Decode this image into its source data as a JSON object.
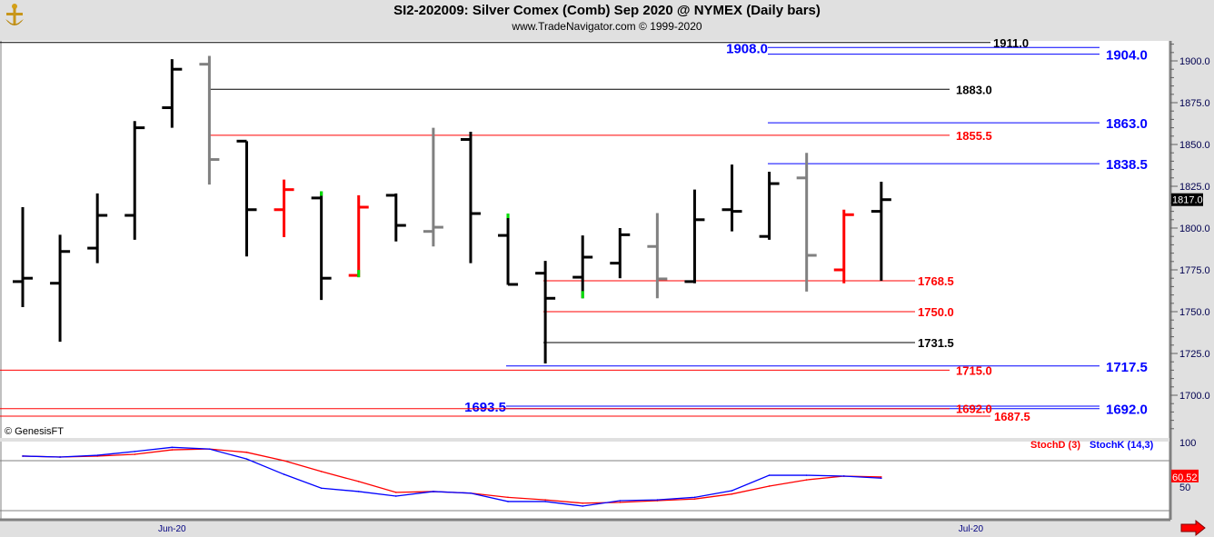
{
  "header": {
    "title": "SI2-202009:  Silver Comex (Comb) Sep 2020 @ NYMEX  (Daily bars)",
    "subtitle": "www.TradeNavigator.com © 1999-2020",
    "logo_icon": "gold-anchor-logo-icon"
  },
  "copyright": "© GenesisFT",
  "colors": {
    "up": "#000000",
    "down_red": "#ff0000",
    "gray": "#808080",
    "green": "#00e000",
    "blue": "#0000ff",
    "last_price_bg": "#000000",
    "stoch_value_bg": "#ff0000"
  },
  "chart_data": [
    {
      "type": "ohlc",
      "ylim": [
        1680,
        1915
      ],
      "y_ticks": [
        "1900.0",
        "1875.0",
        "1850.0",
        "1825.0",
        "1800.0",
        "1775.0",
        "1750.0",
        "1725.0",
        "1700.0"
      ],
      "x_tick_labels": [
        {
          "label": "Jun-20",
          "bar": 4
        },
        {
          "label": "Jul-20",
          "bar": 25.4
        }
      ],
      "last_price": "1817.0",
      "bars": [
        {
          "o": 1768,
          "h": 1812.5,
          "l": 1752.7,
          "c": 1770,
          "color": "black"
        },
        {
          "o": 1767,
          "h": 1796,
          "l": 1732,
          "c": 1786,
          "color": "black"
        },
        {
          "o": 1788,
          "h": 1820.7,
          "l": 1779,
          "c": 1807.6,
          "color": "black"
        },
        {
          "o": 1807.6,
          "h": 1864,
          "l": 1793,
          "c": 1860,
          "color": "black"
        },
        {
          "o": 1872,
          "h": 1901,
          "l": 1860,
          "c": 1895,
          "color": "black"
        },
        {
          "o": 1898,
          "h": 1903,
          "l": 1826,
          "c": 1841,
          "color": "gray"
        },
        {
          "o": 1852,
          "h": 1852,
          "l": 1783,
          "c": 1811,
          "color": "black"
        },
        {
          "o": 1811,
          "h": 1829,
          "l": 1794.6,
          "c": 1823,
          "color": "red"
        },
        {
          "o": 1818,
          "h": 1822,
          "l": 1757,
          "c": 1770,
          "color": "black",
          "mark": "high"
        },
        {
          "o": 1771.7,
          "h": 1819.6,
          "l": 1770.6,
          "c": 1812.5,
          "color": "red",
          "mark": "low"
        },
        {
          "o": 1819.6,
          "h": 1820.7,
          "l": 1792,
          "c": 1801.6,
          "color": "black"
        },
        {
          "o": 1798,
          "h": 1860,
          "l": 1789,
          "c": 1800.5,
          "color": "gray"
        },
        {
          "o": 1853,
          "h": 1857.6,
          "l": 1779,
          "c": 1808.7,
          "color": "black"
        },
        {
          "o": 1795.6,
          "h": 1808.7,
          "l": 1766,
          "c": 1766.3,
          "color": "black",
          "mark": "high"
        },
        {
          "o": 1773,
          "h": 1780.4,
          "l": 1719,
          "c": 1758,
          "color": "black"
        },
        {
          "o": 1770.6,
          "h": 1795.6,
          "l": 1758,
          "c": 1782.6,
          "color": "black",
          "mark": "low"
        },
        {
          "o": 1779,
          "h": 1800,
          "l": 1770,
          "c": 1796,
          "color": "black"
        },
        {
          "o": 1789,
          "h": 1809,
          "l": 1758,
          "c": 1769.6,
          "color": "gray"
        },
        {
          "o": 1768,
          "h": 1823,
          "l": 1767,
          "c": 1805,
          "color": "black"
        },
        {
          "o": 1811,
          "h": 1838,
          "l": 1798,
          "c": 1810,
          "color": "black"
        },
        {
          "o": 1795,
          "h": 1833.7,
          "l": 1793,
          "c": 1826.6,
          "color": "black"
        },
        {
          "o": 1830,
          "h": 1845,
          "l": 1762,
          "c": 1783.7,
          "color": "gray"
        },
        {
          "o": 1775,
          "h": 1811,
          "l": 1767,
          "c": 1808,
          "color": "red"
        },
        {
          "o": 1810,
          "h": 1827.7,
          "l": 1768.5,
          "c": 1817,
          "color": "black"
        }
      ],
      "levels": [
        {
          "label": "1911.0",
          "price": 1911.0,
          "color": "#000000"
        },
        {
          "label": "1908.0",
          "price": 1908.0,
          "color": "#0000ff"
        },
        {
          "label": "1904.0",
          "price": 1904.0,
          "color": "#0000ff"
        },
        {
          "label": "1883.0",
          "price": 1883.0,
          "color": "#000000"
        },
        {
          "label": "1863.0",
          "price": 1863.0,
          "color": "#0000ff"
        },
        {
          "label": "1855.5",
          "price": 1855.5,
          "color": "#ff0000"
        },
        {
          "label": "1838.5",
          "price": 1838.5,
          "color": "#0000ff"
        },
        {
          "label": "1768.5",
          "price": 1768.5,
          "color": "#ff0000"
        },
        {
          "label": "1750.0",
          "price": 1750.0,
          "color": "#ff0000"
        },
        {
          "label": "1731.5",
          "price": 1731.5,
          "color": "#000000"
        },
        {
          "label": "1717.5",
          "price": 1717.5,
          "color": "#0000ff"
        },
        {
          "label": "1715.0",
          "price": 1715.0,
          "color": "#ff0000"
        },
        {
          "label": "1693.5",
          "price": 1693.5,
          "color": "#0000ff"
        },
        {
          "label": "1692.0",
          "price": 1692.0,
          "color": "#0000ff"
        },
        {
          "label": "1692.0",
          "price": 1692.0,
          "color": "#ff0000"
        },
        {
          "label": "1687.5",
          "price": 1687.5,
          "color": "#ff0000"
        }
      ]
    },
    {
      "type": "line",
      "ylim": [
        0,
        100
      ],
      "y_ticks": [
        "100",
        "50"
      ],
      "series": [
        {
          "name": "StochD (3)",
          "color": "#ff0000",
          "values": [
            85.5,
            84.4,
            85.5,
            87.6,
            93,
            94,
            90,
            80,
            67,
            55,
            42,
            43,
            41,
            36,
            33,
            29,
            30,
            32,
            34,
            40,
            49.5,
            57,
            61.5,
            60.52
          ]
        },
        {
          "name": "StochK (14,3)",
          "color": "#0000ff",
          "values": [
            85.5,
            84.4,
            86.5,
            91,
            96,
            94,
            82,
            63.6,
            47,
            43,
            37.5,
            43,
            41,
            31,
            31,
            25.5,
            32,
            33,
            36,
            44,
            62.5,
            62.5,
            61.5,
            59
          ]
        }
      ],
      "last_value": "60.52"
    }
  ]
}
